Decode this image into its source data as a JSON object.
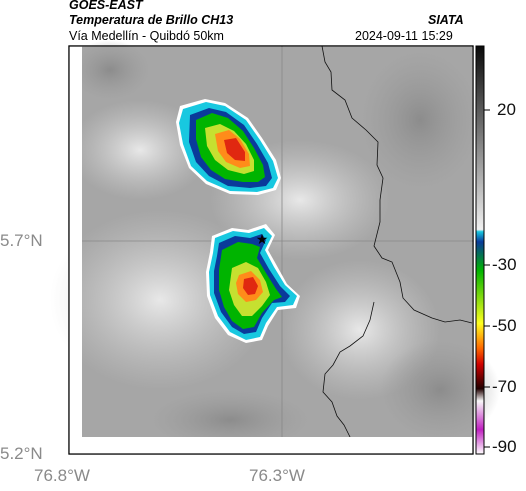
{
  "header": {
    "satellite": "GOES-EAST",
    "product": "Temperatura de Brillo CH13",
    "region": "Vía Medellín - Quibdó 50km",
    "agency": "SIATA",
    "timestamp": "2024-09-11 15:29"
  },
  "axes": {
    "lat_ticks": [
      "5.7°N",
      "5.2°N"
    ],
    "lon_ticks": [
      "76.8°W",
      "76.3°W"
    ]
  },
  "colorbar": {
    "ticks": [
      "20",
      "-30",
      "-50",
      "-70",
      "-90"
    ],
    "colors": {
      "warm_top": "#0a0a0a",
      "warm_bottom": "#f0f0f0",
      "cyan": "#18c8e0",
      "blue": "#0a3a9a",
      "green": "#00b400",
      "yellow": "#ffff20",
      "orange": "#ff6a00",
      "red": "#d00000",
      "dark": "#200000",
      "white": "#f8f8f8",
      "magenta": "#c020c0"
    }
  },
  "marker": {
    "name": "station-star",
    "lat": 5.7,
    "lon": -76.35
  }
}
